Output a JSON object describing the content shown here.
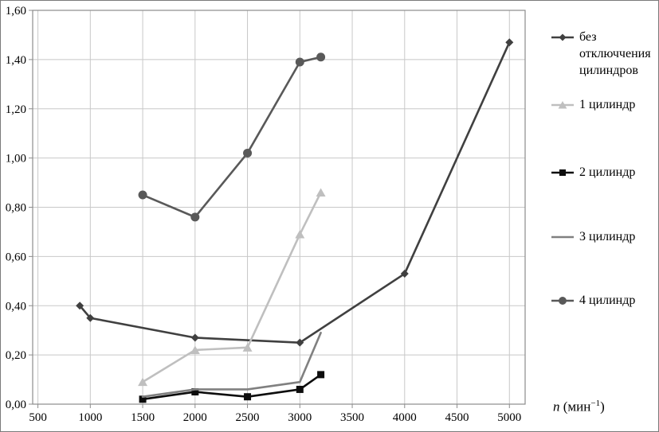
{
  "chart_data": {
    "type": "line",
    "title": "",
    "xlabel": "n (мин⁻¹)",
    "xlabel_var": "n",
    "xlabel_unit_open": " (мин",
    "xlabel_exponent": "−1",
    "xlabel_unit_close": ")",
    "ylabel": "",
    "xlim": [
      450,
      5150
    ],
    "ylim": [
      0,
      1.6
    ],
    "grid": true,
    "grid_color": "#c8c8c8",
    "axis_color": "#8c8c8c",
    "legend_position": "right",
    "xticks": [
      500,
      1000,
      1500,
      2000,
      2500,
      3000,
      3500,
      4000,
      4500,
      5000
    ],
    "xtick_labels": [
      "500",
      "1000",
      "1500",
      "2000",
      "2500",
      "3000",
      "3500",
      "4000",
      "4500",
      "5000"
    ],
    "yticks": [
      0,
      0.2,
      0.4,
      0.6,
      0.8,
      1.0,
      1.2,
      1.4,
      1.6
    ],
    "ytick_labels": [
      "0,00",
      "0,20",
      "0,40",
      "0,60",
      "0,80",
      "1,00",
      "1,20",
      "1,40",
      "1,60"
    ],
    "series": [
      {
        "name": "без отключчения цилиндров",
        "marker": "diamond",
        "color": "#404040",
        "x": [
          900,
          1000,
          2000,
          3000,
          4000,
          5000
        ],
        "y": [
          0.4,
          0.35,
          0.27,
          0.25,
          0.53,
          1.47
        ]
      },
      {
        "name": "1 цилиндр",
        "marker": "triangle",
        "color": "#bfbfbf",
        "x": [
          1500,
          2000,
          2500,
          3000,
          3200
        ],
        "y": [
          0.09,
          0.22,
          0.23,
          0.69,
          0.86
        ]
      },
      {
        "name": "2 цилиндр",
        "marker": "square",
        "color": "#0d0d0d",
        "x": [
          1500,
          2000,
          2500,
          3000,
          3200
        ],
        "y": [
          0.02,
          0.05,
          0.03,
          0.06,
          0.12
        ]
      },
      {
        "name": "3 цилиндр",
        "marker": "none",
        "color": "#808080",
        "x": [
          1500,
          2000,
          2500,
          3000,
          3200
        ],
        "y": [
          0.03,
          0.06,
          0.06,
          0.09,
          0.29
        ]
      },
      {
        "name": "4 цилиндр",
        "marker": "circle",
        "color": "#595959",
        "x": [
          1500,
          2000,
          2500,
          3000,
          3200
        ],
        "y": [
          0.85,
          0.76,
          1.02,
          1.39,
          1.41
        ]
      }
    ]
  }
}
